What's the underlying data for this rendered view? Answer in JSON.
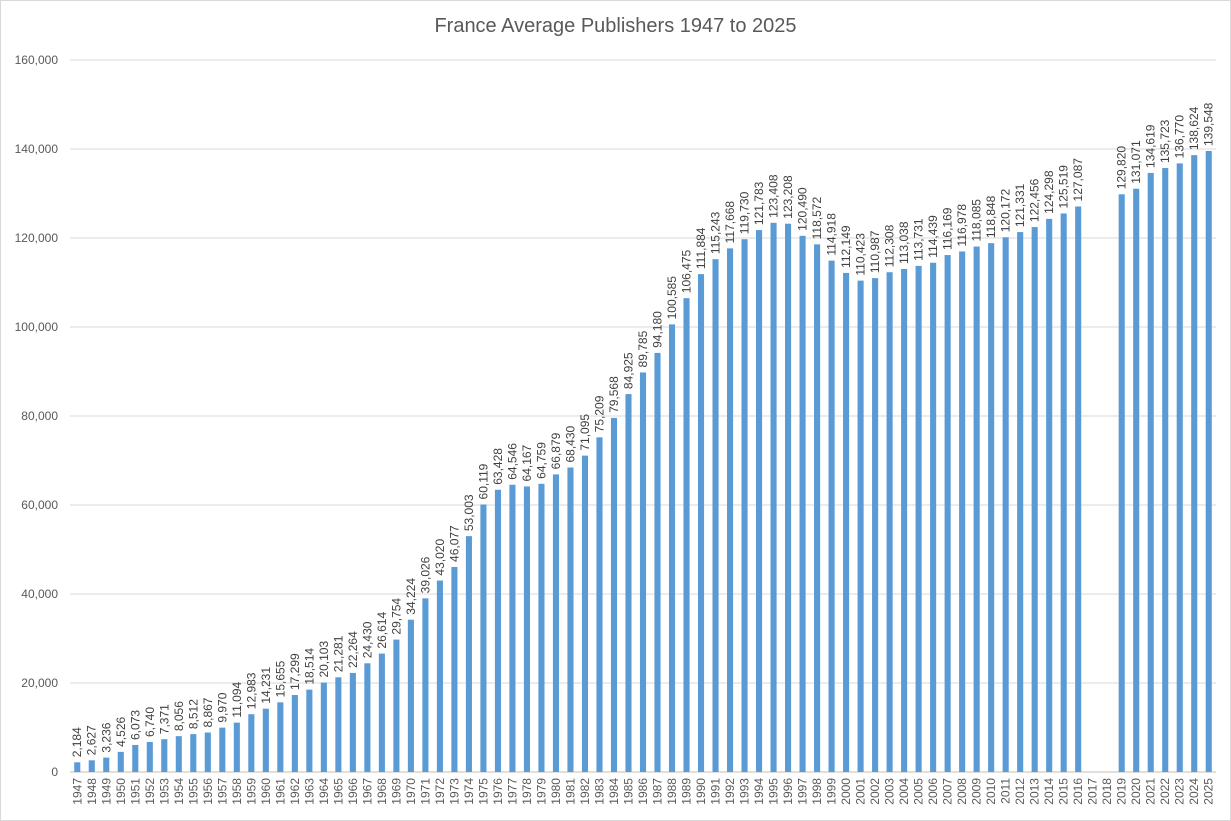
{
  "chart_data": {
    "type": "bar",
    "title": "France Average Publishers 1947 to 2025",
    "xlabel": "",
    "ylabel": "",
    "ylim": [
      0,
      160000
    ],
    "yticks": [
      0,
      20000,
      40000,
      60000,
      80000,
      100000,
      120000,
      140000,
      160000
    ],
    "ytick_labels": [
      "0",
      "20,000",
      "40,000",
      "60,000",
      "80,000",
      "100,000",
      "120,000",
      "140,000",
      "160,000"
    ],
    "grid": true,
    "legend": "none",
    "bar_color": "#5b9bd5",
    "categories": [
      "1947",
      "1948",
      "1949",
      "1950",
      "1951",
      "1952",
      "1953",
      "1954",
      "1955",
      "1956",
      "1957",
      "1958",
      "1959",
      "1960",
      "1961",
      "1962",
      "1963",
      "1964",
      "1965",
      "1966",
      "1967",
      "1968",
      "1969",
      "1970",
      "1971",
      "1972",
      "1973",
      "1974",
      "1975",
      "1976",
      "1977",
      "1978",
      "1979",
      "1980",
      "1981",
      "1982",
      "1983",
      "1984",
      "1985",
      "1986",
      "1987",
      "1988",
      "1989",
      "1990",
      "1991",
      "1992",
      "1993",
      "1994",
      "1995",
      "1996",
      "1997",
      "1998",
      "1999",
      "2000",
      "2001",
      "2002",
      "2003",
      "2004",
      "2005",
      "2006",
      "2007",
      "2008",
      "2009",
      "2010",
      "2011",
      "2012",
      "2013",
      "2014",
      "2015",
      "2016",
      "2017",
      "2018",
      "2019",
      "2020",
      "2021",
      "2022",
      "2023",
      "2024",
      "2025"
    ],
    "values": [
      2184,
      2627,
      3236,
      4526,
      6073,
      6740,
      7371,
      8056,
      8512,
      8867,
      9970,
      11094,
      12983,
      14231,
      15655,
      17299,
      18514,
      20103,
      21281,
      22264,
      24430,
      26614,
      29754,
      34224,
      39026,
      43020,
      46077,
      53003,
      60119,
      63428,
      64546,
      64167,
      64759,
      66879,
      68430,
      71095,
      75209,
      79568,
      84925,
      89785,
      94180,
      100585,
      106475,
      111884,
      115243,
      117668,
      119730,
      121783,
      123408,
      123208,
      120490,
      118572,
      114918,
      112149,
      110423,
      110987,
      112308,
      113038,
      113731,
      114439,
      116169,
      116978,
      118085,
      118848,
      120172,
      121331,
      122456,
      124298,
      125519,
      127087,
      null,
      null,
      129820,
      131071,
      134619,
      135723,
      136770,
      138624,
      139548
    ],
    "value_labels": [
      "2,184",
      "2,627",
      "3,236",
      "4,526",
      "6,073",
      "6,740",
      "7,371",
      "8,056",
      "8,512",
      "8,867",
      "9,970",
      "11,094",
      "12,983",
      "14,231",
      "15,655",
      "17,299",
      "18,514",
      "20,103",
      "21,281",
      "22,264",
      "24,430",
      "26,614",
      "29,754",
      "34,224",
      "39,026",
      "43,020",
      "46,077",
      "53,003",
      "60,119",
      "63,428",
      "64,546",
      "64,167",
      "64,759",
      "66,879",
      "68,430",
      "71,095",
      "75,209",
      "79,568",
      "84,925",
      "89,785",
      "94,180",
      "100,585",
      "106,475",
      "111,884",
      "115,243",
      "117,668",
      "119,730",
      "121,783",
      "123,408",
      "123,208",
      "120,490",
      "118,572",
      "114,918",
      "112,149",
      "110,423",
      "110,987",
      "112,308",
      "113,038",
      "113,731",
      "114,439",
      "116,169",
      "116,978",
      "118,085",
      "118,848",
      "120,172",
      "121,331",
      "122,456",
      "124,298",
      "125,519",
      "127,087",
      "",
      "",
      "129,820",
      "131,071",
      "134,619",
      "135,723",
      "136,770",
      "138,624",
      "139,548"
    ]
  }
}
